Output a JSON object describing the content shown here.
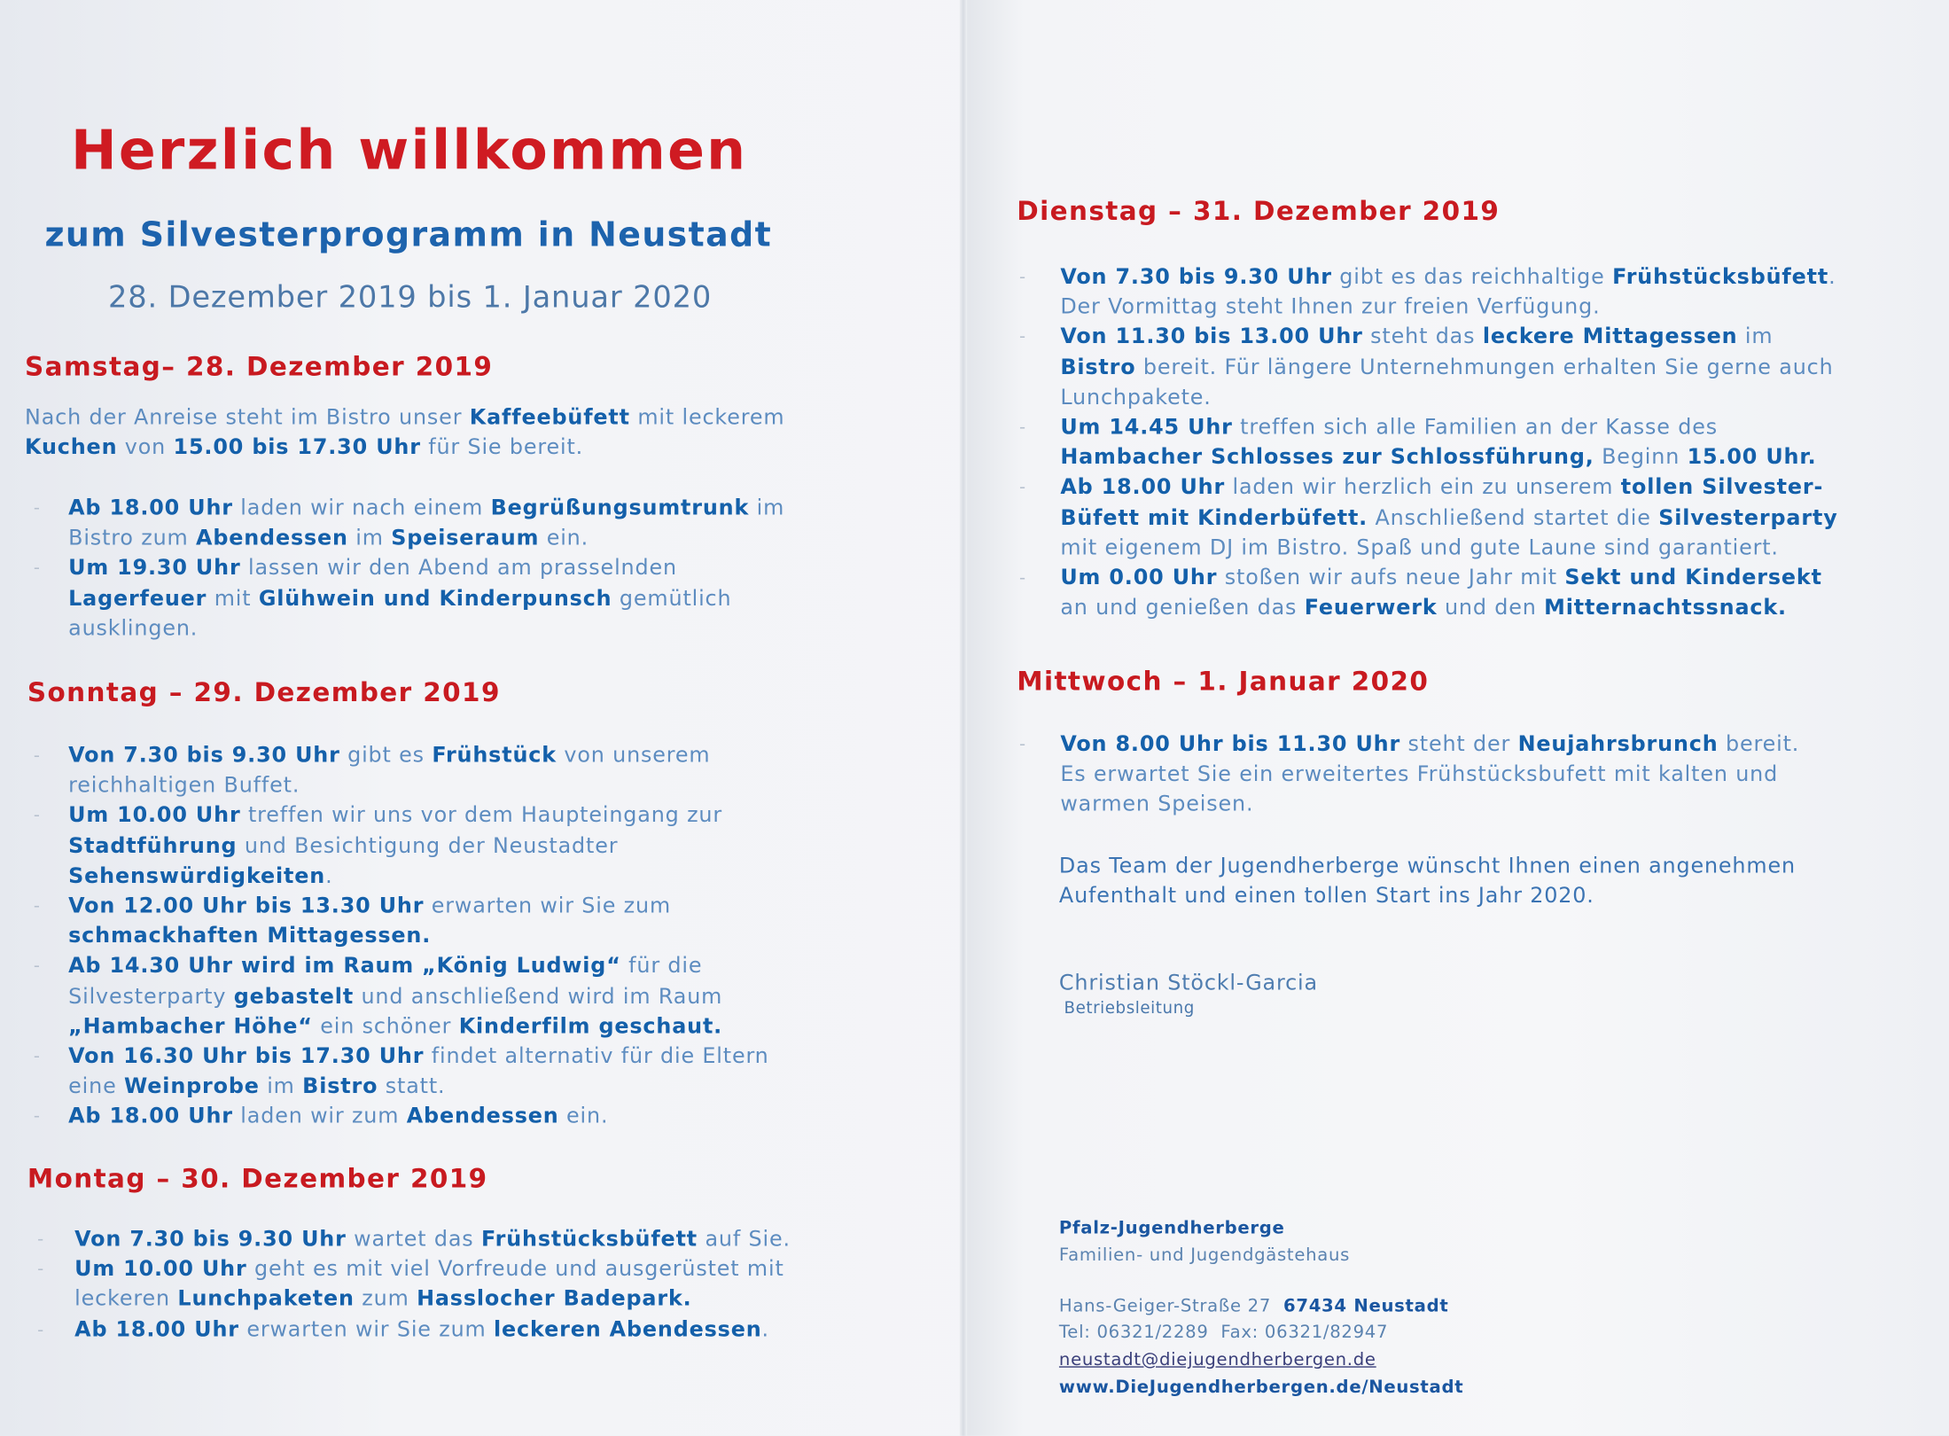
{
  "intro": {
    "title": "Herzlich willkommen",
    "subtitle": "zum Silvesterprogramm in Neustadt",
    "dates": "28. Dezember 2019 bis 1. Januar 2020"
  },
  "colors": {
    "heading_red": "#c81a20",
    "text_blue": "#1460aa",
    "light_blue": "#5d8cc0"
  },
  "sections": [
    {
      "heading": "Samstag– 28. Dezember 2019",
      "para": [
        [
          [
            "Nach der Anreise steht im Bistro unser ",
            0
          ],
          [
            "Kaffeebüfett",
            1
          ],
          [
            " mit leckerem",
            0
          ]
        ],
        [
          [
            "Kuchen",
            1
          ],
          [
            " von ",
            0
          ],
          [
            "15.00 bis 17.30 Uhr",
            1
          ],
          [
            " für Sie bereit.",
            0
          ]
        ]
      ],
      "items": [
        [
          [
            [
              "Ab 18.00 Uhr",
              1
            ],
            [
              " laden wir nach einem ",
              0
            ],
            [
              "Begrüßungsumtrunk",
              1
            ],
            [
              " im",
              0
            ]
          ],
          [
            [
              "Bistro zum ",
              0
            ],
            [
              "Abendessen",
              1
            ],
            [
              " im ",
              0
            ],
            [
              "Speiseraum",
              1
            ],
            [
              " ein.",
              0
            ]
          ]
        ],
        [
          [
            [
              "Um 19.30 Uhr",
              1
            ],
            [
              " lassen wir den Abend am prasselnden",
              0
            ]
          ],
          [
            [
              "Lagerfeuer",
              1
            ],
            [
              " mit ",
              0
            ],
            [
              "Glühwein und Kinderpunsch",
              1
            ],
            [
              " gemütlich",
              0
            ]
          ],
          [
            [
              "ausklingen.",
              0
            ]
          ]
        ]
      ]
    },
    {
      "heading": "Sonntag – 29. Dezember 2019",
      "para": [],
      "items": [
        [
          [
            [
              "Von 7.30 bis 9.30 Uhr",
              1
            ],
            [
              " gibt es ",
              0
            ],
            [
              "Frühstück",
              1
            ],
            [
              " von unserem",
              0
            ]
          ],
          [
            [
              "reichhaltigen Buffet.",
              0
            ]
          ]
        ],
        [
          [
            [
              "Um 10.00 Uhr",
              1
            ],
            [
              " treffen wir uns vor dem Haupteingang zur",
              0
            ]
          ],
          [
            [
              "Stadtführung",
              1
            ],
            [
              " und Besichtigung der Neustadter",
              0
            ]
          ],
          [
            [
              "Sehenswürdigkeiten",
              1
            ],
            [
              ".",
              0
            ]
          ]
        ],
        [
          [
            [
              "Von 12.00 Uhr bis 13.30 Uhr",
              1
            ],
            [
              " erwarten wir Sie zum",
              0
            ]
          ],
          [
            [
              "schmackhaften Mittagessen.",
              1
            ]
          ]
        ],
        [
          [
            [
              "Ab 14.30 Uhr wird im Raum „König Ludwig“",
              1
            ],
            [
              " für die",
              0
            ]
          ],
          [
            [
              "Silvesterparty ",
              0
            ],
            [
              "gebastelt",
              1
            ],
            [
              " und anschließend wird im Raum",
              0
            ]
          ],
          [
            [
              "„Hambacher Höhe“",
              1
            ],
            [
              " ein schöner ",
              0
            ],
            [
              "Kinderfilm geschaut.",
              1
            ]
          ]
        ],
        [
          [
            [
              "Von 16.30 Uhr bis 17.30 Uhr",
              1
            ],
            [
              " findet alternativ für die Eltern",
              0
            ]
          ],
          [
            [
              "eine ",
              0
            ],
            [
              "Weinprobe",
              1
            ],
            [
              " im ",
              0
            ],
            [
              "Bistro",
              1
            ],
            [
              " statt.",
              0
            ]
          ]
        ],
        [
          [
            [
              "Ab 18.00 Uhr",
              1
            ],
            [
              " laden wir zum ",
              0
            ],
            [
              "Abendessen",
              1
            ],
            [
              " ein.",
              0
            ]
          ]
        ]
      ]
    },
    {
      "heading": "Montag – 30. Dezember 2019",
      "para": [],
      "items": [
        [
          [
            [
              "Von 7.30 bis 9.30 Uhr",
              1
            ],
            [
              " wartet das ",
              0
            ],
            [
              "Frühstücksbüfett",
              1
            ],
            [
              " auf Sie.",
              0
            ]
          ]
        ],
        [
          [
            [
              "Um 10.00 Uhr",
              1
            ],
            [
              " geht es mit viel Vorfreude und ausgerüstet mit",
              0
            ]
          ],
          [
            [
              "leckeren ",
              0
            ],
            [
              "Lunchpaketen",
              1
            ],
            [
              " zum ",
              0
            ],
            [
              "Hasslocher Badepark.",
              1
            ]
          ]
        ],
        [
          [
            [
              "Ab 18.00 Uhr",
              1
            ],
            [
              " erwarten wir Sie zum ",
              0
            ],
            [
              "leckeren Abendessen",
              1
            ],
            [
              ".",
              0
            ]
          ]
        ]
      ]
    },
    {
      "heading": "Dienstag – 31. Dezember 2019",
      "para": [],
      "items": [
        [
          [
            [
              "Von 7.30 bis 9.30 Uhr",
              1
            ],
            [
              " gibt es das reichhaltige ",
              0
            ],
            [
              "Frühstücksbüfett",
              1
            ],
            [
              ".",
              0
            ]
          ],
          [
            [
              "Der Vormittag steht Ihnen zur freien Verfügung.",
              0
            ]
          ]
        ],
        [
          [
            [
              "Von 11.30 bis 13.00 Uhr",
              1
            ],
            [
              " steht das ",
              0
            ],
            [
              "leckere Mittagessen",
              1
            ],
            [
              " im",
              0
            ]
          ],
          [
            [
              "Bistro",
              1
            ],
            [
              " bereit. Für längere Unternehmungen erhalten Sie gerne auch",
              0
            ]
          ],
          [
            [
              "Lunchpakete.",
              0
            ]
          ]
        ],
        [
          [
            [
              "Um 14.45 Uhr",
              1
            ],
            [
              " treffen sich alle Familien an der Kasse des",
              0
            ]
          ],
          [
            [
              "Hambacher Schlosses zur Schlossführung,",
              1
            ],
            [
              " Beginn ",
              0
            ],
            [
              "15.00 Uhr.",
              1
            ]
          ]
        ],
        [
          [
            [
              "Ab 18.00 Uhr",
              1
            ],
            [
              " laden wir herzlich ein zu unserem ",
              0
            ],
            [
              "tollen Silvester-",
              1
            ]
          ],
          [
            [
              "Büfett mit Kinderbüfett.",
              1
            ],
            [
              " Anschließend startet die ",
              0
            ],
            [
              "Silvesterparty",
              1
            ]
          ],
          [
            [
              "mit eigenem DJ im Bistro. Spaß und gute Laune sind garantiert.",
              0
            ]
          ]
        ],
        [
          [
            [
              "Um 0.00 Uhr",
              1
            ],
            [
              " stoßen wir aufs neue Jahr mit ",
              0
            ],
            [
              "Sekt und Kindersekt",
              1
            ]
          ],
          [
            [
              "an und genießen das ",
              0
            ],
            [
              "Feuerwerk",
              1
            ],
            [
              " und den ",
              0
            ],
            [
              "Mitternachtssnack.",
              1
            ]
          ]
        ]
      ]
    },
    {
      "heading": "Mittwoch – 1. Januar 2020",
      "para": [],
      "items": [
        [
          [
            [
              "Von 8.00 Uhr bis 11.30 Uhr",
              1
            ],
            [
              " steht der ",
              0
            ],
            [
              "Neujahrsbrunch",
              1
            ],
            [
              " bereit.",
              0
            ]
          ],
          [
            [
              "Es erwartet Sie ein erweitertes Frühstücksbufett mit kalten und",
              0
            ]
          ],
          [
            [
              "warmen Speisen.",
              0
            ]
          ]
        ]
      ]
    }
  ],
  "closing": {
    "lines": [
      "Das Team der Jugendherberge wünscht Ihnen einen angenehmen",
      "Aufenthalt und einen tollen Start ins Jahr 2020."
    ],
    "signature": "Christian Stöckl-Garcia",
    "signature_title": "Betriebsleitung"
  },
  "footer": {
    "name": "Pfalz-Jugendherberge",
    "subtitle": "Familien- und Jugendgästehaus",
    "street": "Hans-Geiger-Straße 27",
    "city": "67434 Neustadt",
    "phone_fax": "Tel: 06321/2289  Fax: 06321/82947",
    "email": "neustadt@diejugendherbergen.de",
    "website": "www.DieJugendherbergen.de/Neustadt"
  }
}
